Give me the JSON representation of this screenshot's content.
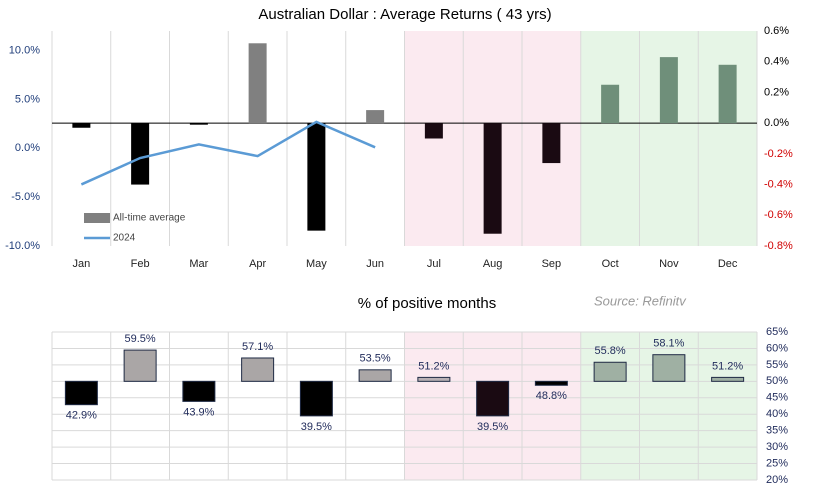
{
  "chart_data": [
    {
      "type": "combo",
      "title": "Australian Dollar : Average Returns ( 43 yrs)",
      "categories": [
        "Jan",
        "Feb",
        "Mar",
        "Apr",
        "May",
        "Jun",
        "Jul",
        "Aug",
        "Sep",
        "Oct",
        "Nov",
        "Dec"
      ],
      "backgrounds": [
        "#ffffff",
        "#ffffff",
        "#ffffff",
        "#ffffff",
        "#ffffff",
        "#ffffff",
        "#fbeaf0",
        "#fbeaf0",
        "#fbeaf0",
        "#e6f5e6",
        "#e6f5e6",
        "#e6f5e6"
      ],
      "series": [
        {
          "name": "All-time average",
          "type": "bar",
          "axis": "y2",
          "color": "#808080",
          "colors": [
            "#000000",
            "#000000",
            "#000000",
            "#808080",
            "#000000",
            "#808080",
            "#1a0a12",
            "#1a0a12",
            "#1a0a12",
            "#6f8f7a",
            "#6f8f7a",
            "#6f8f7a"
          ],
          "values": [
            -0.03,
            -0.4,
            -0.01,
            0.52,
            -0.7,
            0.085,
            -0.1,
            -0.72,
            -0.26,
            0.25,
            0.43,
            0.38
          ]
        },
        {
          "name": "2024",
          "type": "line",
          "color": "#5b9bd5",
          "values": [
            -3.7,
            -1.0,
            0.4,
            -0.8,
            2.7,
            0.1,
            null,
            null,
            null,
            null,
            null,
            null
          ]
        }
      ],
      "ylim": [
        -10,
        12
      ],
      "yticks": [
        {
          "value": 10,
          "label": "10.0%"
        },
        {
          "value": 5,
          "label": "5.0%"
        },
        {
          "value": 0,
          "label": "0.0%"
        },
        {
          "value": -5,
          "label": "-5.0%"
        },
        {
          "value": -10,
          "label": "-10.0%"
        }
      ],
      "y2lim": [
        -0.8,
        0.6
      ],
      "y2ticks": [
        {
          "value": 0.6,
          "label": "0.6%"
        },
        {
          "value": 0.4,
          "label": "0.4%"
        },
        {
          "value": 0.2,
          "label": "0.2%"
        },
        {
          "value": 0,
          "label": "0.0%"
        },
        {
          "value": -0.2,
          "label": "-0.2%"
        },
        {
          "value": -0.4,
          "label": "-0.4%"
        },
        {
          "value": -0.6,
          "label": "-0.6%"
        },
        {
          "value": -0.8,
          "label": "-0.8%"
        }
      ],
      "legend": "lower-left"
    },
    {
      "type": "bar",
      "title": "% of positive months",
      "source": "Source: Refinitv",
      "base": 50,
      "backgrounds": [
        "#ffffff",
        "#ffffff",
        "#ffffff",
        "#ffffff",
        "#ffffff",
        "#ffffff",
        "#fbeaf0",
        "#fbeaf0",
        "#fbeaf0",
        "#e6f5e6",
        "#e6f5e6",
        "#e6f5e6"
      ],
      "colors": [
        "#000000",
        "#aaa6a6",
        "#000000",
        "#aaa6a6",
        "#000000",
        "#aaa6a6",
        "#b8b0b4",
        "#1a0a12",
        "#000000",
        "#9fb0a3",
        "#9fb0a3",
        "#9fb0a3"
      ],
      "values": [
        42.9,
        59.5,
        43.9,
        57.1,
        39.5,
        53.5,
        51.2,
        39.5,
        48.8,
        55.8,
        58.1,
        51.2
      ],
      "value_labels": [
        "42.9%",
        "59.5%",
        "43.9%",
        "57.1%",
        "39.5%",
        "53.5%",
        "51.2%",
        "39.5%",
        "48.8%",
        "55.8%",
        "58.1%",
        "51.2%"
      ],
      "ylim": [
        20,
        65
      ],
      "yticks": [
        {
          "value": 65,
          "label": "65%"
        },
        {
          "value": 60,
          "label": "60%"
        },
        {
          "value": 55,
          "label": "55%"
        },
        {
          "value": 50,
          "label": "50%"
        },
        {
          "value": 45,
          "label": "45%"
        },
        {
          "value": 40,
          "label": "40%"
        },
        {
          "value": 35,
          "label": "35%"
        },
        {
          "value": 30,
          "label": "30%"
        },
        {
          "value": 25,
          "label": "25%"
        },
        {
          "value": 20,
          "label": "20%"
        }
      ]
    }
  ]
}
